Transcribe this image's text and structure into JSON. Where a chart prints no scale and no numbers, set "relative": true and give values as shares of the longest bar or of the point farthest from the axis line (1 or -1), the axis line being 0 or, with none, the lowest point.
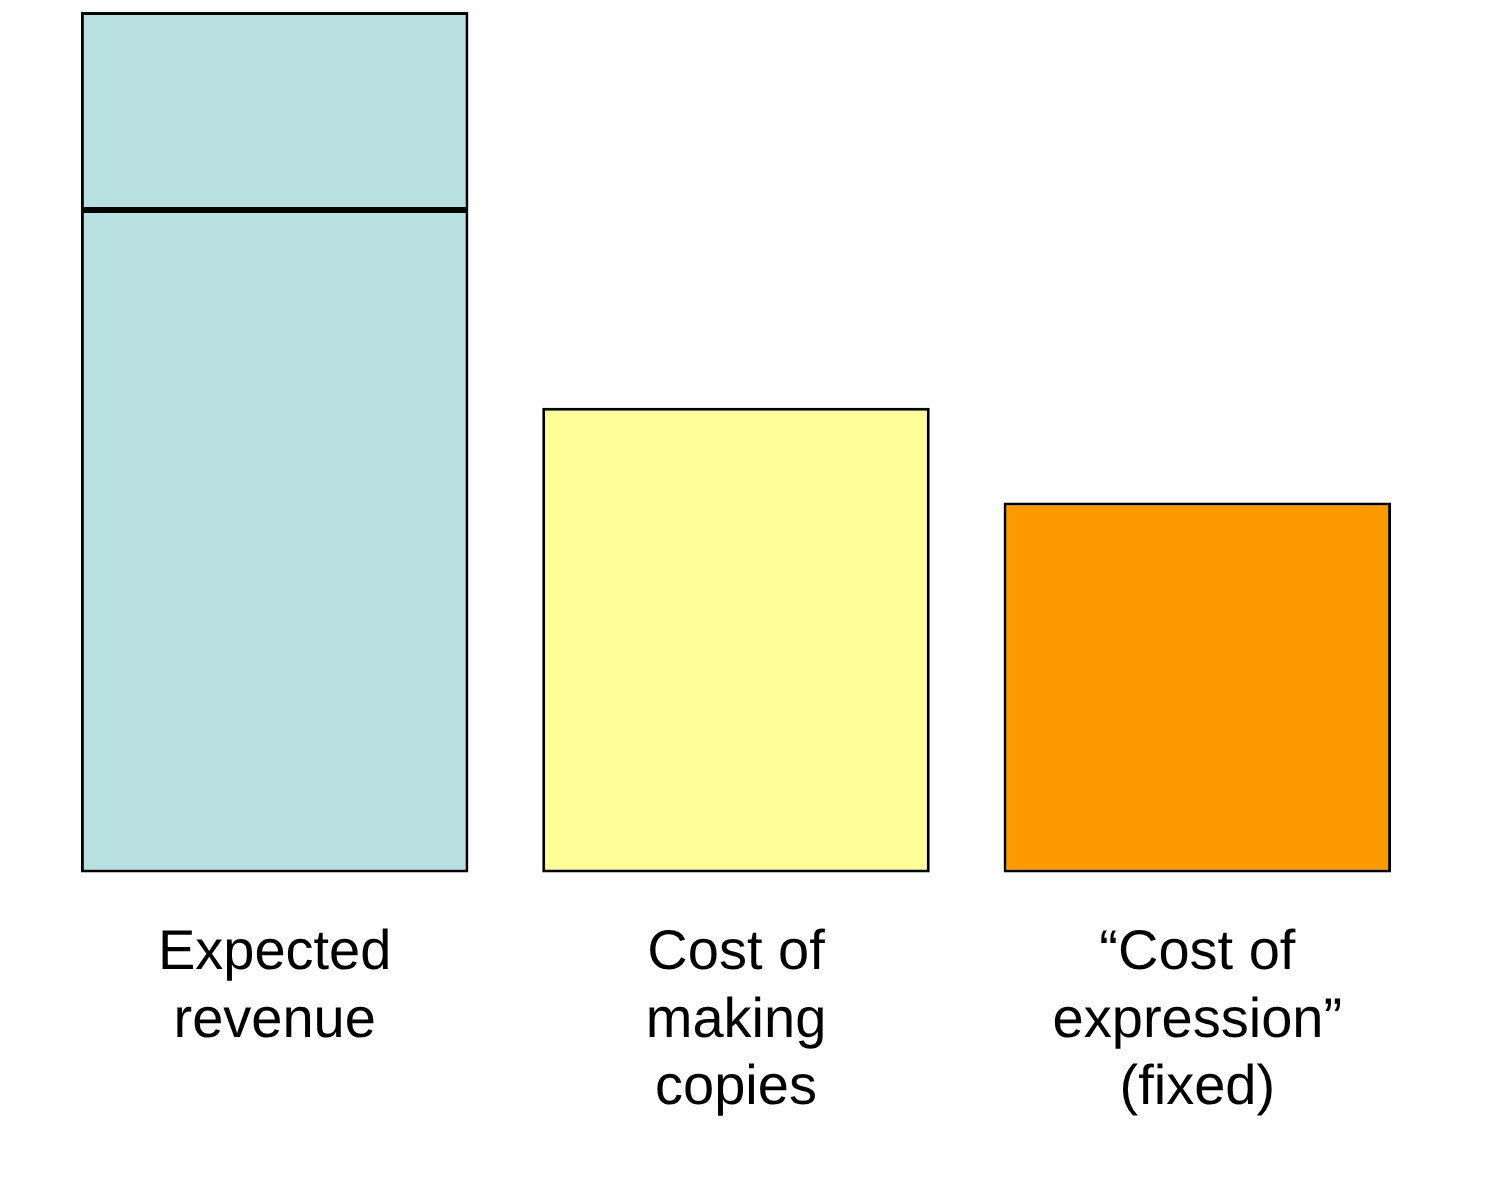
{
  "chart_data": {
    "type": "bar",
    "relative": true,
    "stacked": true,
    "categories": [
      "Expected\nrevenue",
      "Cost of\nmaking\ncopies",
      "“Cost of\nexpression”\n(fixed)"
    ],
    "series": [
      {
        "colors": [
          "#b9e0e1",
          "#ffff99",
          "#ff9900"
        ],
        "values": [
          0.77,
          0.54,
          0.43
        ]
      },
      {
        "color": "#b9e0e1",
        "values": [
          0.23,
          null,
          null
        ]
      }
    ],
    "grid": false,
    "legend": false
  }
}
